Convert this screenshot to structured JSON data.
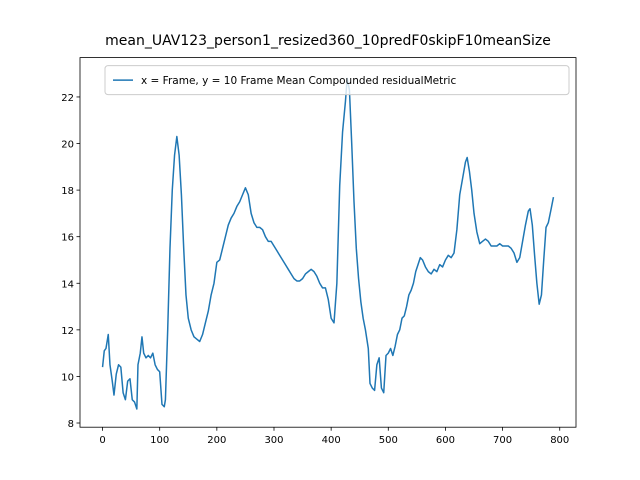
{
  "chart_data": {
    "type": "line",
    "title": "mean_UAV123_person1_resized360_10predF0skipF10meanSize",
    "x": [
      0,
      3,
      6,
      10,
      13,
      17,
      20,
      24,
      28,
      32,
      36,
      40,
      44,
      48,
      52,
      56,
      60,
      62,
      66,
      69,
      72,
      76,
      80,
      84,
      88,
      92,
      96,
      100,
      104,
      108,
      110,
      114,
      118,
      122,
      126,
      130,
      134,
      138,
      142,
      146,
      150,
      155,
      160,
      165,
      170,
      175,
      180,
      185,
      190,
      195,
      200,
      205,
      210,
      215,
      220,
      225,
      230,
      235,
      240,
      245,
      250,
      255,
      260,
      265,
      270,
      275,
      280,
      285,
      290,
      295,
      300,
      305,
      310,
      315,
      320,
      325,
      330,
      335,
      340,
      345,
      350,
      355,
      360,
      365,
      370,
      375,
      380,
      385,
      390,
      395,
      400,
      405,
      410,
      415,
      420,
      425,
      428,
      432,
      436,
      440,
      444,
      448,
      452,
      456,
      460,
      465,
      468,
      472,
      476,
      480,
      484,
      488,
      492,
      496,
      500,
      504,
      508,
      512,
      516,
      520,
      524,
      528,
      532,
      536,
      540,
      544,
      548,
      552,
      556,
      560,
      565,
      570,
      575,
      580,
      585,
      590,
      595,
      600,
      605,
      610,
      615,
      620,
      625,
      630,
      635,
      638,
      642,
      646,
      650,
      655,
      660,
      665,
      670,
      675,
      680,
      685,
      690,
      695,
      700,
      705,
      710,
      715,
      720,
      725,
      730,
      735,
      740,
      745,
      748,
      752,
      756,
      760,
      764,
      768,
      772,
      776,
      780,
      785,
      789
    ],
    "series": [
      {
        "name": "x = Frame, y = 10 Frame Mean Compounded residualMetric",
        "color": "#1f77b4",
        "values": [
          10.4,
          11.1,
          11.2,
          11.8,
          10.5,
          9.8,
          9.2,
          10.1,
          10.5,
          10.4,
          9.3,
          9.0,
          9.8,
          9.9,
          9.0,
          8.9,
          8.6,
          10.5,
          11.0,
          11.7,
          11.0,
          10.8,
          10.9,
          10.8,
          11.0,
          10.5,
          10.3,
          10.2,
          8.8,
          8.7,
          9.0,
          12.0,
          15.5,
          18.0,
          19.5,
          20.3,
          19.5,
          17.8,
          15.5,
          13.5,
          12.5,
          12.0,
          11.7,
          11.6,
          11.5,
          11.8,
          12.3,
          12.8,
          13.5,
          14.0,
          14.9,
          15.0,
          15.5,
          16.0,
          16.5,
          16.8,
          17.0,
          17.3,
          17.5,
          17.8,
          18.1,
          17.8,
          17.0,
          16.6,
          16.4,
          16.4,
          16.3,
          16.0,
          15.8,
          15.8,
          15.6,
          15.4,
          15.2,
          15.0,
          14.8,
          14.6,
          14.4,
          14.2,
          14.1,
          14.1,
          14.2,
          14.4,
          14.5,
          14.6,
          14.5,
          14.3,
          14.0,
          13.8,
          13.8,
          13.3,
          12.5,
          12.3,
          14.0,
          18.2,
          20.5,
          21.8,
          22.8,
          22.3,
          20.0,
          17.5,
          15.5,
          14.2,
          13.2,
          12.5,
          12.0,
          11.2,
          9.7,
          9.5,
          9.4,
          10.5,
          10.8,
          9.5,
          9.3,
          10.9,
          11.0,
          11.2,
          10.9,
          11.3,
          11.8,
          12.0,
          12.5,
          12.6,
          13.0,
          13.5,
          13.7,
          14.0,
          14.5,
          14.8,
          15.1,
          15.0,
          14.7,
          14.5,
          14.4,
          14.6,
          14.5,
          14.8,
          14.7,
          15.0,
          15.2,
          15.1,
          15.3,
          16.3,
          17.8,
          18.5,
          19.2,
          19.4,
          18.8,
          18.0,
          17.0,
          16.2,
          15.7,
          15.8,
          15.9,
          15.8,
          15.6,
          15.6,
          15.6,
          15.7,
          15.6,
          15.6,
          15.6,
          15.5,
          15.3,
          14.9,
          15.1,
          15.8,
          16.5,
          17.1,
          17.2,
          16.5,
          15.2,
          14.0,
          13.1,
          13.5,
          15.0,
          16.4,
          16.6,
          17.2,
          17.7
        ]
      }
    ],
    "xlim": [
      -39.45,
      828.45
    ],
    "xticks": [
      0,
      100,
      200,
      300,
      400,
      500,
      600,
      700,
      800
    ],
    "ylim": [
      7.82,
      23.69
    ],
    "yticks": [
      8,
      10,
      12,
      14,
      16,
      18,
      20,
      22
    ],
    "legend": "upper right"
  }
}
